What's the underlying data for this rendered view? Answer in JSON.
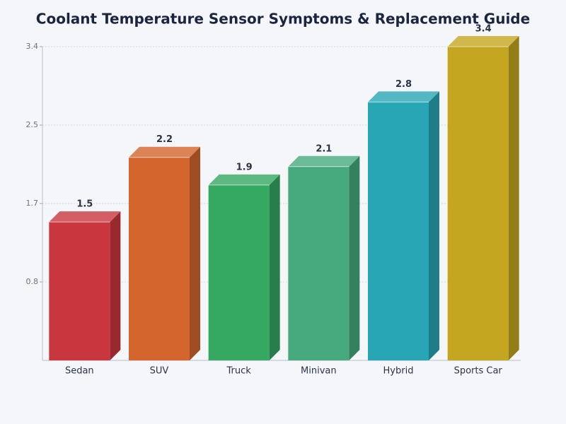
{
  "chart_data": {
    "type": "bar3d",
    "title": "Coolant Temperature Sensor Symptoms & Replacement Guide",
    "categories": [
      "Sedan",
      "SUV",
      "Truck",
      "Minivan",
      "Hybrid",
      "Sports Car"
    ],
    "values": [
      1.5,
      2.2,
      1.9,
      2.1,
      2.8,
      3.4
    ],
    "colors": [
      "#c9363e",
      "#d4652d",
      "#35a862",
      "#46aa7e",
      "#29a6b5",
      "#c4a620"
    ],
    "ylim": [
      0,
      3.4
    ],
    "yticks": [
      {
        "value": 0.85,
        "label": "0.8"
      },
      {
        "value": 1.7,
        "label": "1.7"
      },
      {
        "value": 2.55,
        "label": "2.5"
      },
      {
        "value": 3.4,
        "label": "3.4"
      }
    ],
    "grid": true
  }
}
